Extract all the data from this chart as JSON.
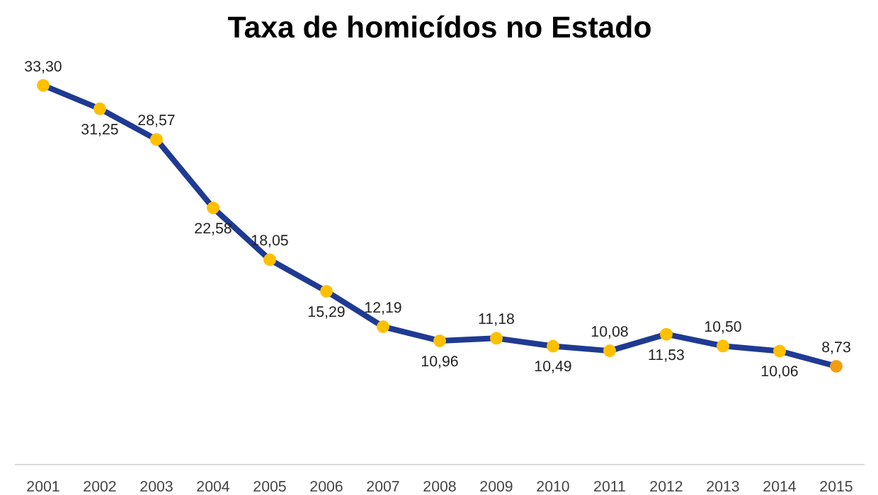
{
  "chart_data": {
    "type": "line",
    "title": "Taxa de homicídos no Estado",
    "categories": [
      "2001",
      "2002",
      "2003",
      "2004",
      "2005",
      "2006",
      "2007",
      "2008",
      "2009",
      "2010",
      "2011",
      "2012",
      "2013",
      "2014",
      "2015"
    ],
    "series": [
      {
        "color": "#1f3a93",
        "values": [
          33.3,
          31.25,
          28.57,
          22.58,
          18.05,
          15.29,
          12.19,
          10.96,
          11.18,
          10.49,
          10.08,
          11.53,
          10.5,
          10.06,
          8.73
        ],
        "colors": [
          "#ffc000",
          "#ffc000",
          "#ffc000",
          "#ffc000",
          "#ffc000",
          "#ffc000",
          "#ffc000",
          "#ffc000",
          "#ffc000",
          "#ffc000",
          "#ffc000",
          "#ffc000",
          "#ffc000",
          "#ffc000",
          "#f39c12"
        ],
        "value_labels": [
          "33,30",
          "31,25",
          "28,57",
          "22,58",
          "18,05",
          "15,29",
          "12,19",
          "10,96",
          "11,18",
          "10,49",
          "10,08",
          "11,53",
          "10,50",
          "10,06",
          "8,73"
        ]
      }
    ],
    "marker": "circle",
    "line_style": "solid",
    "grid": false
  }
}
